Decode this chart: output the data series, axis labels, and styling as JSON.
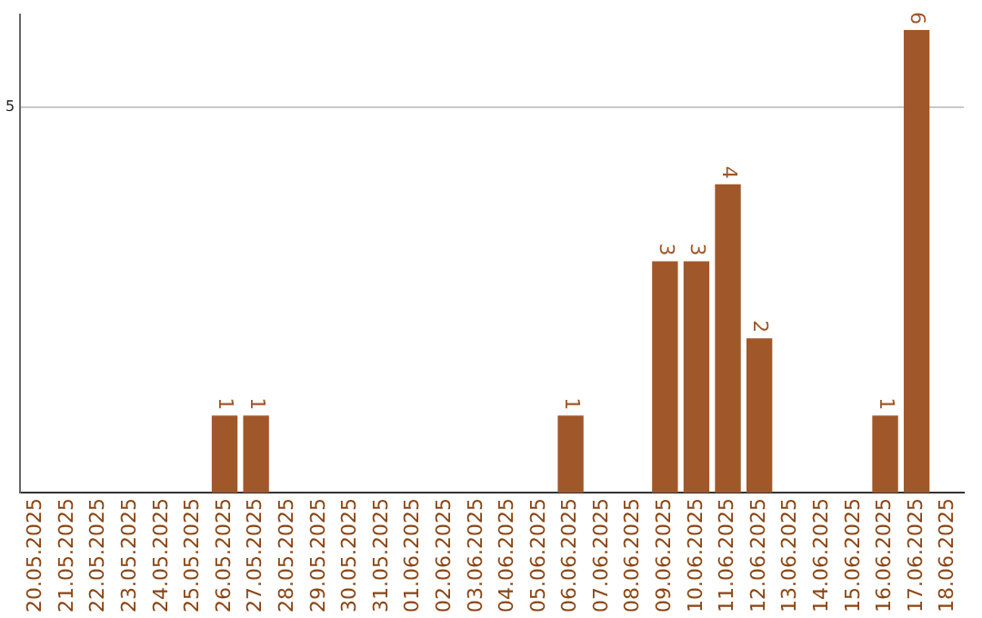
{
  "chart_data": {
    "type": "bar",
    "categories": [
      "20.05.2025",
      "21.05.2025",
      "22.05.2025",
      "23.05.2025",
      "24.05.2025",
      "25.05.2025",
      "26.05.2025",
      "27.05.2025",
      "28.05.2025",
      "29.05.2025",
      "30.05.2025",
      "31.05.2025",
      "01.06.2025",
      "02.06.2025",
      "03.06.2025",
      "04.06.2025",
      "05.06.2025",
      "06.06.2025",
      "07.06.2025",
      "08.06.2025",
      "09.06.2025",
      "10.06.2025",
      "11.06.2025",
      "12.06.2025",
      "13.06.2025",
      "14.06.2025",
      "15.06.2025",
      "16.06.2025",
      "17.06.2025",
      "18.06.2025"
    ],
    "values": [
      0,
      0,
      0,
      0,
      0,
      0,
      1,
      1,
      0,
      0,
      0,
      0,
      0,
      0,
      0,
      0,
      0,
      1,
      0,
      0,
      3,
      3,
      4,
      2,
      0,
      0,
      0,
      1,
      6,
      0
    ],
    "value_labels": [
      null,
      null,
      null,
      null,
      null,
      null,
      "1",
      "1",
      null,
      null,
      null,
      null,
      null,
      null,
      null,
      null,
      null,
      "1",
      null,
      null,
      "3",
      "3",
      "4",
      "2",
      null,
      null,
      null,
      "1",
      "6",
      null
    ],
    "color": "#a0582a",
    "ylim": [
      0,
      6.2
    ],
    "yticks": [
      5
    ],
    "grid": "y",
    "legend": false
  }
}
